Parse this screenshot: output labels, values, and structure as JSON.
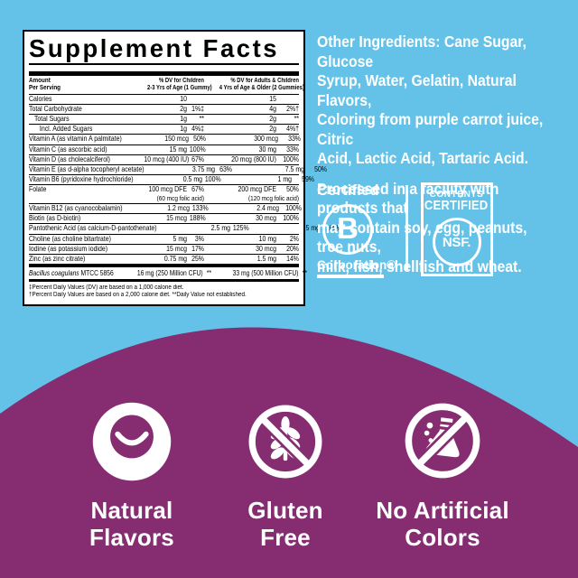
{
  "colors": {
    "background_blue": "#64C2E8",
    "background_purple": "#862D72",
    "panel_bg": "#FFFFFF",
    "text_black": "#000000",
    "text_white": "#FFFFFF"
  },
  "supplement_panel": {
    "title": "Supplement Facts",
    "columns": {
      "amount_l1": "Amount",
      "amount_l2": "Per Serving",
      "child_l1": "% DV for Children",
      "child_l2": "2-3 Yrs of Age (1 Gummy)",
      "adult_l1": "% DV for Adults & Children",
      "adult_l2": "4 Yrs of Age & Older (2 Gummies)"
    },
    "rows": [
      {
        "name": "Calories",
        "indent": 0,
        "c_amt": "10",
        "c_dv": "",
        "a_amt": "15",
        "a_dv": ""
      },
      {
        "name": "Total Carbohydrate",
        "indent": 0,
        "c_amt": "2g",
        "c_dv": "1%‡",
        "a_amt": "4g",
        "a_dv": "2%†"
      },
      {
        "name": "Total Sugars",
        "indent": 1,
        "c_amt": "1g",
        "c_dv": "**",
        "a_amt": "2g",
        "a_dv": "**"
      },
      {
        "name": "Incl. Added Sugars",
        "indent": 2,
        "c_amt": "1g",
        "c_dv": "4%‡",
        "a_amt": "2g",
        "a_dv": "4%†"
      },
      {
        "name": "Vitamin A (as vitamin A palmitate)",
        "indent": 0,
        "c_amt": "150 mcg",
        "c_dv": "50%",
        "a_amt": "300 mcg",
        "a_dv": "33%"
      },
      {
        "name": "Vitamin C (as ascorbic acid)",
        "indent": 0,
        "c_amt": "15 mg",
        "c_dv": "100%",
        "a_amt": "30 mg",
        "a_dv": "33%"
      },
      {
        "name": "Vitamin D (as cholecalciferol)",
        "indent": 0,
        "c_amt": "10 mcg (400 IU)",
        "c_dv": "67%",
        "a_amt": "20 mcg (800 IU)",
        "a_dv": "100%"
      },
      {
        "name": "Vitamin E (as d-alpha tocopheryl acetate)",
        "indent": 0,
        "c_amt": "3.75 mg",
        "c_dv": "63%",
        "a_amt": "7.5 mg",
        "a_dv": "50%"
      },
      {
        "name": "Vitamin B6 (pyridoxine hydrochloride)",
        "indent": 0,
        "c_amt": "0.5 mg",
        "c_dv": "100%",
        "a_amt": "1 mg",
        "a_dv": "59%"
      },
      {
        "name": "Folate",
        "indent": 0,
        "c_amt": "100 mcg DFE",
        "c_dv": "67%",
        "a_amt": "200 mcg DFE",
        "a_dv": "50%",
        "c_sub": "(60 mcg folic acid)",
        "a_sub": "(120 mcg folic acid)"
      },
      {
        "name": "Vitamin B12 (as cyanocobalamin)",
        "indent": 0,
        "c_amt": "1.2 mcg",
        "c_dv": "133%",
        "a_amt": "2.4 mcg",
        "a_dv": "100%"
      },
      {
        "name": "Biotin (as D-biotin)",
        "indent": 0,
        "c_amt": "15 mcg",
        "c_dv": "188%",
        "a_amt": "30 mcg",
        "a_dv": "100%"
      },
      {
        "name": "Pantothenic Acid (as calcium-D-pantothenate)",
        "indent": 0,
        "c_amt": "2.5 mg",
        "c_dv": "125%",
        "a_amt": "5 mg",
        "a_dv": "100%"
      },
      {
        "name": "Choline (as choline bitartrate)",
        "indent": 0,
        "c_amt": "5 mg",
        "c_dv": "3%",
        "a_amt": "10 mg",
        "a_dv": "2%"
      },
      {
        "name": "Iodine (as potassium iodide)",
        "indent": 0,
        "c_amt": "15 mcg",
        "c_dv": "17%",
        "a_amt": "30 mcg",
        "a_dv": "20%"
      },
      {
        "name": "Zinc (as zinc citrate)",
        "indent": 0,
        "c_amt": "0.75 mg",
        "c_dv": "25%",
        "a_amt": "1.5 mg",
        "a_dv": "14%"
      }
    ],
    "probiotic_row": {
      "name_italic": "Bacillus coagulans",
      "name_rest": " MTCC 5856",
      "c_amt": "16 mg (250 Million CFU)",
      "c_dv": "**",
      "a_amt": "33 mg (500 Million CFU)",
      "a_dv": "**"
    },
    "footnote_line1": "‡Percent Daily Values (DV) are based on a 1,000 calorie diet.",
    "footnote_line2": "†Percent Daily Values are based on a 2,000 calorie diet. **Daily Value not established."
  },
  "side_text": {
    "other_ingredients": "Other Ingredients: Cane Sugar, Glucose\nSyrup, Water, Gelatin, Natural Flavors,\nColoring from purple carrot juice, Citric\nAcid, Lactic Acid, Tartaric Acid.",
    "allergen": "Processed in a facility with products that\nmay contain soy, egg, peanuts, tree nuts,\nmilk, fish, shellfish and wheat."
  },
  "certifications": {
    "bcorp_top": "Certified",
    "bcorp_letter": "B",
    "bcorp_bottom": "Corporation®",
    "nsf_line1": "CONTENTS",
    "nsf_line2": "CERTIFIED",
    "nsf_circle": "NSF."
  },
  "feature_badges": [
    {
      "icon": "smiley-icon",
      "label": "Natural\nFlavors"
    },
    {
      "icon": "no-gluten-icon",
      "label": "Gluten\nFree"
    },
    {
      "icon": "no-artificial-colors-icon",
      "label": "No Artificial\nColors"
    }
  ]
}
